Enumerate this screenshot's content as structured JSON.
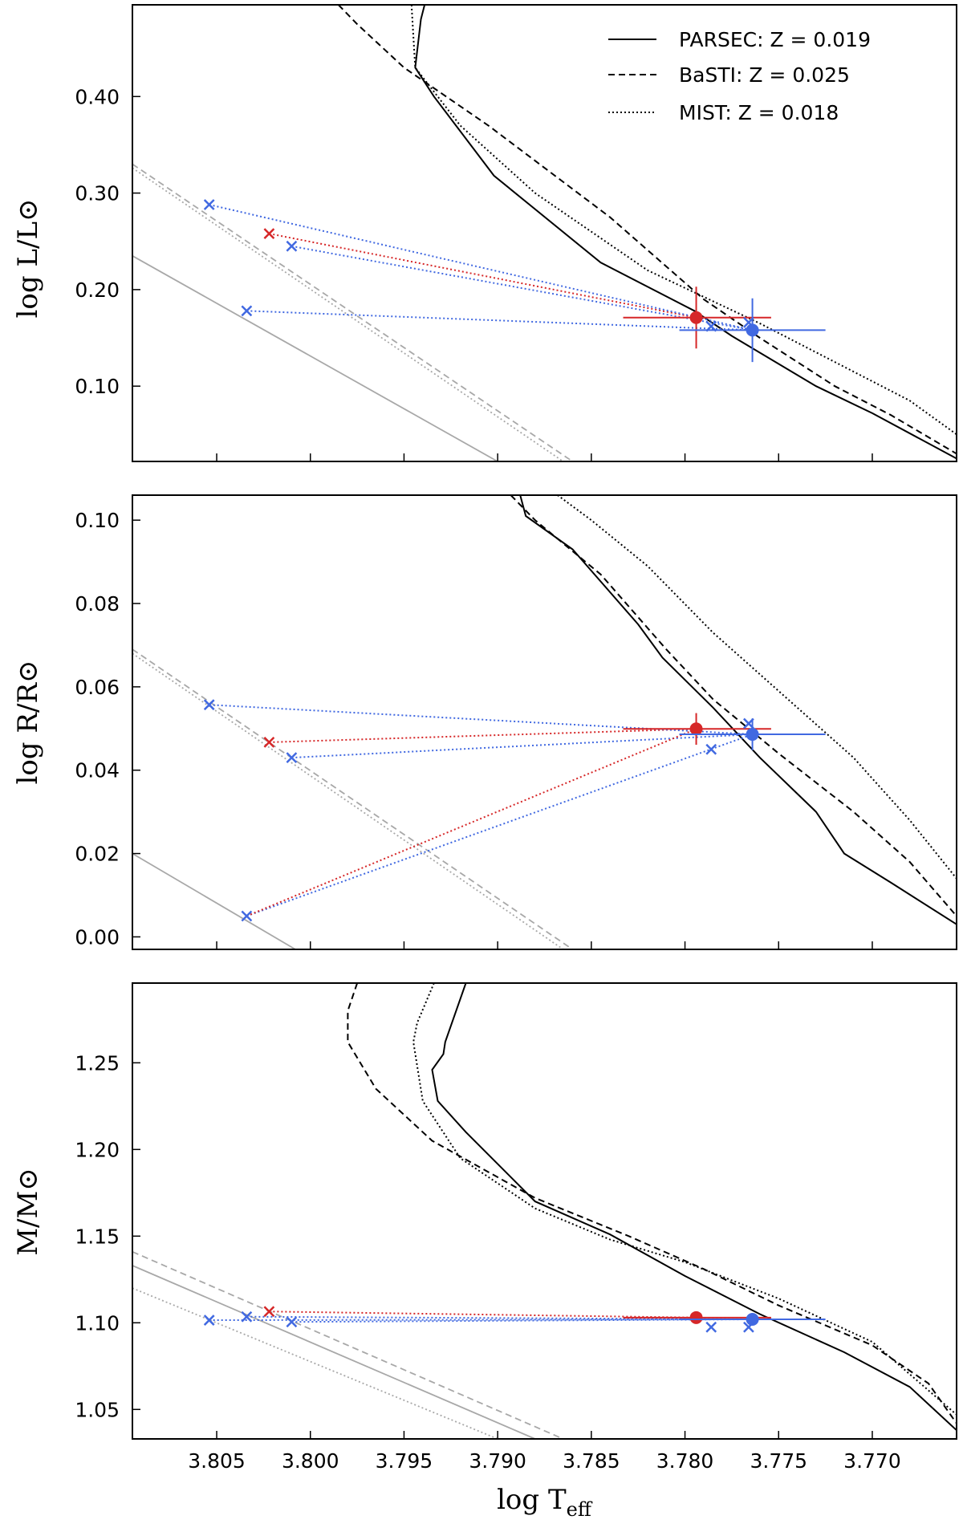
{
  "chart_data": {
    "type": "line",
    "shared_x": {
      "label": "log T_eff",
      "label_main": "log T",
      "label_sub": "eff",
      "lim": [
        3.8095,
        3.7655
      ],
      "ticks": [
        3.805,
        3.8,
        3.795,
        3.79,
        3.785,
        3.78,
        3.775,
        3.77
      ],
      "tick_labels": [
        "3.805",
        "3.800",
        "3.795",
        "3.790",
        "3.785",
        "3.780",
        "3.775",
        "3.770"
      ]
    },
    "legend": {
      "placement": "top-right",
      "entries": [
        {
          "label": "PARSEC: Z = 0.019",
          "style": "solid"
        },
        {
          "label": "BaSTI: Z = 0.025",
          "style": "dashed"
        },
        {
          "label": "MIST: Z = 0.018",
          "style": "dotted"
        }
      ]
    },
    "colors": {
      "star_a": "#d62728",
      "star_b": "#4169e1",
      "isochrone": "#000000",
      "gray": "#a8a8a8"
    },
    "panels": [
      {
        "id": "luminosity",
        "ylabel": "log L/L⊙",
        "ylim": [
          0.022,
          0.495
        ],
        "yticks": [
          0.1,
          0.2,
          0.3,
          0.4
        ],
        "ytick_labels": [
          "0.10",
          "0.20",
          "0.30",
          "0.40"
        ],
        "isochrones": [
          {
            "model": "PARSEC",
            "style": "solid",
            "points": [
              [
                3.7939,
                0.495
              ],
              [
                3.7941,
                0.48
              ],
              [
                3.7944,
                0.43
              ],
              [
                3.7934,
                0.4
              ],
              [
                3.7902,
                0.318
              ],
              [
                3.7845,
                0.228
              ],
              [
                3.7795,
                0.178
              ],
              [
                3.7775,
                0.152
              ],
              [
                3.773,
                0.1
              ],
              [
                3.77,
                0.072
              ],
              [
                3.7655,
                0.025
              ]
            ]
          },
          {
            "model": "BaSTI",
            "style": "dashed",
            "points": [
              [
                3.7985,
                0.495
              ],
              [
                3.7975,
                0.475
              ],
              [
                3.795,
                0.43
              ],
              [
                3.7905,
                0.37
              ],
              [
                3.784,
                0.275
              ],
              [
                3.779,
                0.19
              ],
              [
                3.776,
                0.15
              ],
              [
                3.772,
                0.1
              ],
              [
                3.769,
                0.07
              ],
              [
                3.7655,
                0.03
              ]
            ]
          },
          {
            "model": "MIST",
            "style": "dotted",
            "points": [
              [
                3.7946,
                0.495
              ],
              [
                3.7944,
                0.43
              ],
              [
                3.792,
                0.37
              ],
              [
                3.788,
                0.3
              ],
              [
                3.782,
                0.22
              ],
              [
                3.776,
                0.165
              ],
              [
                3.772,
                0.125
              ],
              [
                3.768,
                0.085
              ],
              [
                3.7655,
                0.05
              ]
            ]
          }
        ],
        "gray_lines": [
          {
            "style": "solid",
            "points": [
              [
                3.8095,
                0.235
              ],
              [
                3.79,
                0.022
              ]
            ]
          },
          {
            "style": "dashed",
            "points": [
              [
                3.8095,
                0.33
              ],
              [
                3.786,
                0.022
              ]
            ]
          },
          {
            "style": "dotted",
            "points": [
              [
                3.8095,
                0.326
              ],
              [
                3.7865,
                0.022
              ]
            ]
          }
        ],
        "stars": [
          {
            "id": "A",
            "color": "red",
            "x": 3.7794,
            "y": 0.171,
            "xerr": [
              0.0039,
              0.004
            ],
            "yerr": [
              0.032,
              0.032
            ]
          },
          {
            "id": "B",
            "color": "blue",
            "x": 3.7764,
            "y": 0.158,
            "xerr": [
              0.0039,
              0.0039
            ],
            "yerr": [
              0.033,
              0.033
            ]
          }
        ],
        "fits": [
          {
            "color": "red",
            "x": 3.8022,
            "y": 0.258,
            "target": "A"
          },
          {
            "color": "blue",
            "x": 3.8054,
            "y": 0.288,
            "target": "B"
          },
          {
            "color": "blue",
            "x": 3.801,
            "y": 0.245,
            "target": "B"
          },
          {
            "color": "blue",
            "x": 3.8034,
            "y": 0.178,
            "target": "B"
          },
          {
            "color": "blue",
            "x": 3.7786,
            "y": 0.162,
            "target": null
          },
          {
            "color": "blue",
            "x": 3.7766,
            "y": 0.166,
            "target": null
          }
        ]
      },
      {
        "id": "radius",
        "ylabel": "log R/R⊙",
        "ylim": [
          -0.003,
          0.106
        ],
        "yticks": [
          0.0,
          0.02,
          0.04,
          0.06,
          0.08,
          0.1
        ],
        "ytick_labels": [
          "0.00",
          "0.02",
          "0.04",
          "0.06",
          "0.08",
          "0.10"
        ],
        "isochrones": [
          {
            "model": "PARSEC",
            "style": "solid",
            "points": [
              [
                3.7888,
                0.106
              ],
              [
                3.7885,
                0.101
              ],
              [
                3.786,
                0.093
              ],
              [
                3.7825,
                0.075
              ],
              [
                3.7812,
                0.067
              ],
              [
                3.7785,
                0.055
              ],
              [
                3.776,
                0.043
              ],
              [
                3.773,
                0.03
              ],
              [
                3.7715,
                0.02
              ],
              [
                3.769,
                0.013
              ],
              [
                3.7655,
                0.003
              ]
            ]
          },
          {
            "model": "BaSTI",
            "style": "dashed",
            "points": [
              [
                3.7893,
                0.106
              ],
              [
                3.788,
                0.1
              ],
              [
                3.7845,
                0.087
              ],
              [
                3.781,
                0.069
              ],
              [
                3.7785,
                0.057
              ],
              [
                3.775,
                0.044
              ],
              [
                3.771,
                0.03
              ],
              [
                3.768,
                0.018
              ],
              [
                3.7655,
                0.005
              ]
            ]
          },
          {
            "model": "MIST",
            "style": "dotted",
            "points": [
              [
                3.7868,
                0.106
              ],
              [
                3.785,
                0.1
              ],
              [
                3.782,
                0.089
              ],
              [
                3.7785,
                0.073
              ],
              [
                3.7745,
                0.057
              ],
              [
                3.771,
                0.043
              ],
              [
                3.768,
                0.028
              ],
              [
                3.7655,
                0.014
              ]
            ]
          }
        ],
        "gray_lines": [
          {
            "style": "solid",
            "points": [
              [
                3.8095,
                0.02
              ],
              [
                3.8008,
                -0.003
              ]
            ]
          },
          {
            "style": "dashed",
            "points": [
              [
                3.8095,
                0.069
              ],
              [
                3.786,
                -0.003
              ]
            ]
          },
          {
            "style": "dotted",
            "points": [
              [
                3.8095,
                0.068
              ],
              [
                3.7865,
                -0.003
              ]
            ]
          }
        ],
        "stars": [
          {
            "id": "A",
            "color": "red",
            "x": 3.7794,
            "y": 0.0499,
            "xerr": [
              0.0039,
              0.004
            ],
            "yerr": [
              0.0038,
              0.0038
            ]
          },
          {
            "id": "B",
            "color": "blue",
            "x": 3.7764,
            "y": 0.0486,
            "xerr": [
              0.0039,
              0.0039
            ],
            "yerr": [
              0.0038,
              0.0038
            ]
          }
        ],
        "fits": [
          {
            "color": "red",
            "x": 3.8022,
            "y": 0.0467,
            "target": "A"
          },
          {
            "color": "blue",
            "x": 3.8054,
            "y": 0.0557,
            "target": "B"
          },
          {
            "color": "blue",
            "x": 3.801,
            "y": 0.043,
            "target": "B"
          },
          {
            "color": "blue",
            "x": 3.8034,
            "y": 0.005,
            "target": "B"
          },
          {
            "color": "blue",
            "x": 3.7786,
            "y": 0.045,
            "target": null
          },
          {
            "color": "blue",
            "x": 3.7766,
            "y": 0.0512,
            "target": null
          }
        ],
        "extra_links": [
          {
            "color": "red",
            "from": [
              3.8034,
              0.005
            ],
            "to": "A"
          }
        ]
      },
      {
        "id": "mass",
        "ylabel": "M/M⊙",
        "ylim": [
          1.033,
          1.296
        ],
        "yticks": [
          1.05,
          1.1,
          1.15,
          1.2,
          1.25
        ],
        "ytick_labels": [
          "1.05",
          "1.10",
          "1.15",
          "1.20",
          "1.25"
        ],
        "isochrones": [
          {
            "model": "PARSEC",
            "style": "solid",
            "points": [
              [
                3.7917,
                1.296
              ],
              [
                3.7928,
                1.262
              ],
              [
                3.7929,
                1.255
              ],
              [
                3.7935,
                1.246
              ],
              [
                3.7932,
                1.228
              ],
              [
                3.7917,
                1.21
              ],
              [
                3.788,
                1.17
              ],
              [
                3.784,
                1.151
              ],
              [
                3.78,
                1.127
              ],
              [
                3.776,
                1.105
              ],
              [
                3.7715,
                1.083
              ],
              [
                3.768,
                1.063
              ],
              [
                3.7655,
                1.038
              ]
            ]
          },
          {
            "model": "BaSTI",
            "style": "dashed",
            "points": [
              [
                3.7975,
                1.296
              ],
              [
                3.798,
                1.28
              ],
              [
                3.798,
                1.262
              ],
              [
                3.7965,
                1.235
              ],
              [
                3.7935,
                1.205
              ],
              [
                3.788,
                1.172
              ],
              [
                3.783,
                1.15
              ],
              [
                3.779,
                1.131
              ],
              [
                3.775,
                1.11
              ],
              [
                3.77,
                1.087
              ],
              [
                3.767,
                1.065
              ],
              [
                3.7655,
                1.042
              ]
            ]
          },
          {
            "model": "MIST",
            "style": "dotted",
            "points": [
              [
                3.7934,
                1.296
              ],
              [
                3.7943,
                1.273
              ],
              [
                3.7945,
                1.262
              ],
              [
                3.794,
                1.228
              ],
              [
                3.792,
                1.195
              ],
              [
                3.788,
                1.166
              ],
              [
                3.784,
                1.148
              ],
              [
                3.78,
                1.135
              ],
              [
                3.775,
                1.114
              ],
              [
                3.77,
                1.089
              ],
              [
                3.7655,
                1.047
              ]
            ]
          }
        ],
        "gray_lines": [
          {
            "style": "solid",
            "points": [
              [
                3.8095,
                1.133
              ],
              [
                3.788,
                1.033
              ]
            ]
          },
          {
            "style": "dashed",
            "points": [
              [
                3.8095,
                1.141
              ],
              [
                3.7865,
                1.033
              ]
            ]
          },
          {
            "style": "dotted",
            "points": [
              [
                3.8095,
                1.12
              ],
              [
                3.79,
                1.033
              ]
            ]
          }
        ],
        "stars": [
          {
            "id": "A",
            "color": "red",
            "x": 3.7794,
            "y": 1.103,
            "xerr": [
              0.0039,
              0.004
            ],
            "yerr": [
              0,
              0
            ]
          },
          {
            "id": "B",
            "color": "blue",
            "x": 3.7764,
            "y": 1.102,
            "xerr": [
              0.0039,
              0.0039
            ],
            "yerr": [
              0,
              0
            ]
          }
        ],
        "fits": [
          {
            "color": "red",
            "x": 3.8022,
            "y": 1.1065,
            "target": "A"
          },
          {
            "color": "blue",
            "x": 3.8054,
            "y": 1.1015,
            "target": "B"
          },
          {
            "color": "blue",
            "x": 3.8034,
            "y": 1.1035,
            "target": "B"
          },
          {
            "color": "blue",
            "x": 3.801,
            "y": 1.1005,
            "target": "B"
          },
          {
            "color": "blue",
            "x": 3.7786,
            "y": 1.0975,
            "target": null
          },
          {
            "color": "blue",
            "x": 3.7766,
            "y": 1.0975,
            "target": null
          }
        ]
      }
    ]
  }
}
